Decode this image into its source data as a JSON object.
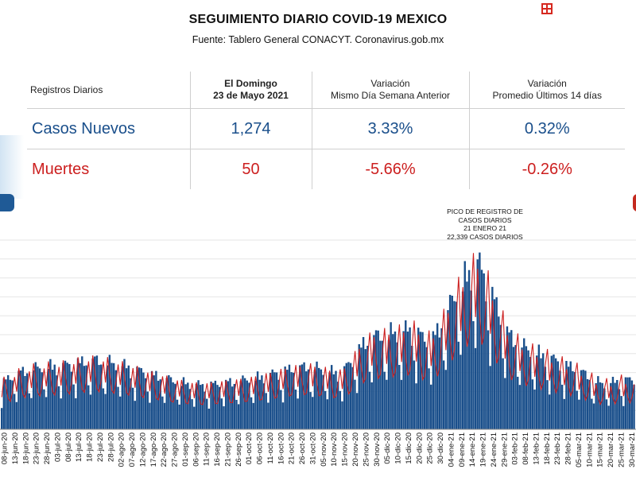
{
  "header": {
    "title": "SEGUIMIENTO DIARIO COVID-19 MEXICO",
    "subtitle": "Fuente: Tablero General CONACYT. Coronavirus.gob.mx"
  },
  "summary": {
    "columns": {
      "label": "Registros Diarios",
      "date_line1": "El Domingo",
      "date_line2": "23 de Mayo 2021",
      "var_week_line1": "Variación",
      "var_week_line2": "Mismo Día Semana Anterior",
      "var_14_line1": "Variación",
      "var_14_line2": "Promedio Últimos 14 días"
    },
    "cases": {
      "label": "Casos Nuevos",
      "value": "1,274",
      "var_week": "3.33%",
      "var_14": "0.32%"
    },
    "deaths": {
      "label": "Muertes",
      "value": "50",
      "var_week": "-5.66%",
      "var_14": "-0.26%"
    }
  },
  "colors": {
    "cases": "#1a4f8b",
    "deaths": "#cc1f1f"
  },
  "chart_data": {
    "type": "bar",
    "title": "",
    "x_tick_labels": [
      "08-jun-20",
      "13-jun-20",
      "18-jun-20",
      "23-jun-20",
      "28-jun-20",
      "03-jul-20",
      "08-jul-20",
      "13-jul-20",
      "18-jul-20",
      "23-jul-20",
      "28-jul-20",
      "02-ago-20",
      "07-ago-20",
      "12-ago-20",
      "17-ago-20",
      "22-ago-20",
      "27-ago-20",
      "01-sep-20",
      "06-sep-20",
      "11-sep-20",
      "16-sep-20",
      "21-sep-20",
      "26-sep-20",
      "01-oct-20",
      "06-oct-20",
      "11-oct-20",
      "16-oct-20",
      "21-oct-20",
      "26-oct-20",
      "31-oct-20",
      "05-nov-20",
      "10-nov-20",
      "15-nov-20",
      "20-nov-20",
      "25-nov-20",
      "30-nov-20",
      "05-dic-20",
      "10-dic-20",
      "15-dic-20",
      "20-dic-20",
      "25-dic-20",
      "30-dic-20",
      "04-ene-21",
      "09-ene-21",
      "14-ene-21",
      "19-ene-21",
      "24-ene-21",
      "29-ene-21",
      "03-feb-21",
      "08-feb-21",
      "13-feb-21",
      "18-feb-21",
      "23-feb-21",
      "28-feb-21",
      "05-mar-21",
      "10-mar-21",
      "15-mar-21",
      "20-mar-21",
      "25-mar-21",
      "30-mar-21"
    ],
    "weekly_cases": [
      5500,
      6200,
      6800,
      7100,
      7300,
      7400,
      7500,
      7800,
      8000,
      8100,
      7900,
      7600,
      7300,
      6900,
      6500,
      6200,
      5800,
      5500,
      5300,
      5200,
      5300,
      5500,
      5600,
      5800,
      6000,
      6300,
      6600,
      7000,
      7200,
      7400,
      7100,
      6800,
      6600,
      7800,
      9800,
      10800,
      11000,
      11300,
      11500,
      11800,
      10500,
      11000,
      13500,
      16000,
      18000,
      19500,
      17000,
      13800,
      11000,
      10000,
      9200,
      8800,
      8300,
      7700,
      7300,
      6600,
      5800,
      5300,
      5600,
      5800
    ],
    "annotation": {
      "lines": [
        "PICO DE REGISTRO DE",
        "CASOS DIARIOS",
        "21 ENERO 21",
        "22,339 CASOS DIARIOS"
      ],
      "x_label": "21-ene-21",
      "value": 22339
    },
    "series": [
      {
        "name": "",
        "color": "#1a4f8b"
      },
      {
        "name": "",
        "color": "#cc1f1f"
      }
    ],
    "ylim": [
      0,
      25000
    ],
    "grid": true
  }
}
